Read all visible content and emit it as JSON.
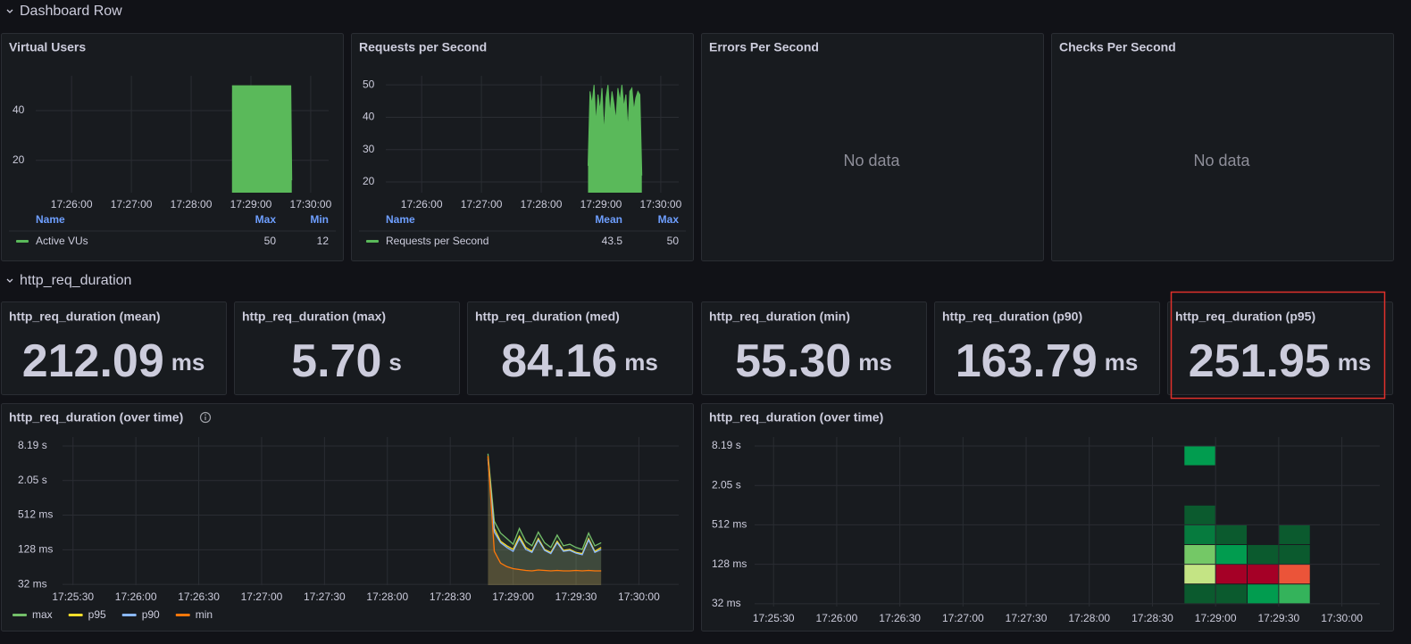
{
  "rows": [
    "Dashboard Row",
    "http_req_duration"
  ],
  "vus": {
    "type": "area",
    "title": "Virtual Users",
    "color": "#5ab95a",
    "x": [
      "17:28:41",
      "17:28:42",
      "17:29:40",
      "17:29:41"
    ],
    "values": [
      50,
      50,
      50,
      12
    ],
    "xlim": [
      "17:25:24",
      "17:30:18"
    ],
    "xticks": [
      "17:26:00",
      "17:27:00",
      "17:28:00",
      "17:29:00",
      "17:30:00"
    ],
    "ylim": [
      7,
      54
    ],
    "yticks": [
      20,
      40
    ],
    "legend": {
      "headers": [
        "Name",
        "Max",
        "Min"
      ],
      "name": "Active VUs",
      "stats": [
        50,
        12
      ]
    }
  },
  "rps": {
    "type": "area",
    "title": "Requests per Second",
    "color": "#5ab95a",
    "x": [
      "17:28:47",
      "17:28:49",
      "17:28:51",
      "17:28:53",
      "17:28:55",
      "17:28:57",
      "17:28:59",
      "17:29:01",
      "17:29:03",
      "17:29:05",
      "17:29:07",
      "17:29:09",
      "17:29:11",
      "17:29:13",
      "17:29:15",
      "17:29:17",
      "17:29:19",
      "17:29:21",
      "17:29:23",
      "17:29:25",
      "17:29:27",
      "17:29:29",
      "17:29:31",
      "17:29:33",
      "17:29:35",
      "17:29:37",
      "17:29:39",
      "17:29:41"
    ],
    "values": [
      25,
      48,
      44,
      50,
      38,
      47,
      42,
      49,
      35,
      46,
      50,
      41,
      48,
      44,
      39,
      49,
      45,
      50,
      43,
      47,
      36,
      48,
      49,
      42,
      46,
      48,
      47,
      22
    ],
    "xlim": [
      "17:25:24",
      "17:30:18"
    ],
    "xticks": [
      "17:26:00",
      "17:27:00",
      "17:28:00",
      "17:29:00",
      "17:30:00"
    ],
    "ylim": [
      16.7,
      52.8
    ],
    "yticks": [
      20,
      30,
      40,
      50
    ],
    "legend": {
      "headers": [
        "Name",
        "Mean",
        "Max"
      ],
      "name": "Requests per Second",
      "stats": [
        43.5,
        50
      ]
    }
  },
  "errors": {
    "title": "Errors Per Second",
    "message": "No data"
  },
  "checks": {
    "title": "Checks Per Second",
    "message": "No data"
  },
  "stats": [
    {
      "title": "http_req_duration (mean)",
      "value": "212.09",
      "unit": "ms"
    },
    {
      "title": "http_req_duration (max)",
      "value": "5.70",
      "unit": "s"
    },
    {
      "title": "http_req_duration (med)",
      "value": "84.16",
      "unit": "ms"
    },
    {
      "title": "http_req_duration (min)",
      "value": "55.30",
      "unit": "ms"
    },
    {
      "title": "http_req_duration (p90)",
      "value": "163.79",
      "unit": "ms"
    },
    {
      "title": "http_req_duration (p95)",
      "value": "251.95",
      "unit": "ms"
    }
  ],
  "overtime_lines": {
    "type": "line",
    "title": "http_req_duration (over time)",
    "log_scale": true,
    "x": [
      "17:28:48",
      "17:28:51",
      "17:28:54",
      "17:28:57",
      "17:29:00",
      "17:29:03",
      "17:29:06",
      "17:29:09",
      "17:29:12",
      "17:29:15",
      "17:29:18",
      "17:29:21",
      "17:29:24",
      "17:29:27",
      "17:29:30",
      "17:29:33",
      "17:29:36",
      "17:29:39",
      "17:29:42"
    ],
    "series": [
      {
        "name": "max",
        "color": "#73bf69",
        "values": [
          6000,
          400,
          250,
          200,
          160,
          300,
          180,
          150,
          260,
          170,
          140,
          230,
          150,
          160,
          140,
          130,
          250,
          150,
          170
        ]
      },
      {
        "name": "p95",
        "color": "#fade2a",
        "values": [
          5200,
          300,
          180,
          150,
          130,
          220,
          140,
          120,
          200,
          130,
          115,
          180,
          125,
          130,
          115,
          110,
          200,
          120,
          140
        ]
      },
      {
        "name": "p90",
        "color": "#8ab8ff",
        "values": [
          4800,
          260,
          170,
          140,
          120,
          200,
          130,
          115,
          190,
          125,
          110,
          170,
          120,
          125,
          112,
          105,
          190,
          115,
          130
        ]
      },
      {
        "name": "min",
        "color": "#ff780a",
        "values": [
          5500,
          120,
          75,
          65,
          60,
          58,
          56,
          55,
          57,
          56,
          55,
          56,
          55,
          55,
          56,
          55,
          56,
          55,
          55
        ]
      }
    ],
    "xlim": [
      "17:25:25",
      "17:30:19"
    ],
    "xticks": [
      "17:25:30",
      "17:26:00",
      "17:26:30",
      "17:27:00",
      "17:27:30",
      "17:28:00",
      "17:28:30",
      "17:29:00",
      "17:29:30",
      "17:30:00"
    ],
    "ylim": [
      31,
      11700
    ],
    "yticks": [
      {
        "value": 32,
        "label": "32 ms"
      },
      {
        "value": 128,
        "label": "128 ms"
      },
      {
        "value": 512,
        "label": "512 ms"
      },
      {
        "value": 2048,
        "label": "2.05 s"
      },
      {
        "value": 8192,
        "label": "8.19 s"
      }
    ]
  },
  "overtime_heatmap": {
    "type": "heatmap",
    "title": "http_req_duration (over time)",
    "log_scale": true,
    "color_scale": [
      "#0b5a2e",
      "#00a352",
      "#8ed06a",
      "#d8ec8e",
      "#f25c3b",
      "#a50026"
    ],
    "cells": [
      {
        "x": "17:28:45",
        "y": 4096,
        "count": 3
      },
      {
        "x": "17:28:45",
        "y": 512,
        "count": 1
      },
      {
        "x": "17:28:45",
        "y": 256,
        "count": 2
      },
      {
        "x": "17:28:45",
        "y": 128,
        "count": 5
      },
      {
        "x": "17:28:45",
        "y": 64,
        "count": 7
      },
      {
        "x": "17:28:45",
        "y": 32,
        "count": 1
      },
      {
        "x": "17:29:00",
        "y": 256,
        "count": 1
      },
      {
        "x": "17:29:00",
        "y": 128,
        "count": 3
      },
      {
        "x": "17:29:00",
        "y": 64,
        "count": 12
      },
      {
        "x": "17:29:00",
        "y": 32,
        "count": 1
      },
      {
        "x": "17:29:15",
        "y": 128,
        "count": 1
      },
      {
        "x": "17:29:15",
        "y": 64,
        "count": 12
      },
      {
        "x": "17:29:15",
        "y": 32,
        "count": 3
      },
      {
        "x": "17:29:30",
        "y": 256,
        "count": 1
      },
      {
        "x": "17:29:30",
        "y": 128,
        "count": 1
      },
      {
        "x": "17:29:30",
        "y": 64,
        "count": 10
      },
      {
        "x": "17:29:30",
        "y": 32,
        "count": 4
      }
    ],
    "xlim": [
      "17:25:21",
      "17:30:18"
    ],
    "xticks": [
      "17:25:30",
      "17:26:00",
      "17:26:30",
      "17:27:00",
      "17:27:30",
      "17:28:00",
      "17:28:30",
      "17:29:00",
      "17:29:30",
      "17:30:00"
    ],
    "ylim": [
      29,
      11200
    ],
    "yticks": [
      {
        "value": 32,
        "label": "32 ms"
      },
      {
        "value": 128,
        "label": "128 ms"
      },
      {
        "value": 512,
        "label": "512 ms"
      },
      {
        "value": 2048,
        "label": "2.05 s"
      },
      {
        "value": 8192,
        "label": "8.19 s"
      }
    ]
  }
}
